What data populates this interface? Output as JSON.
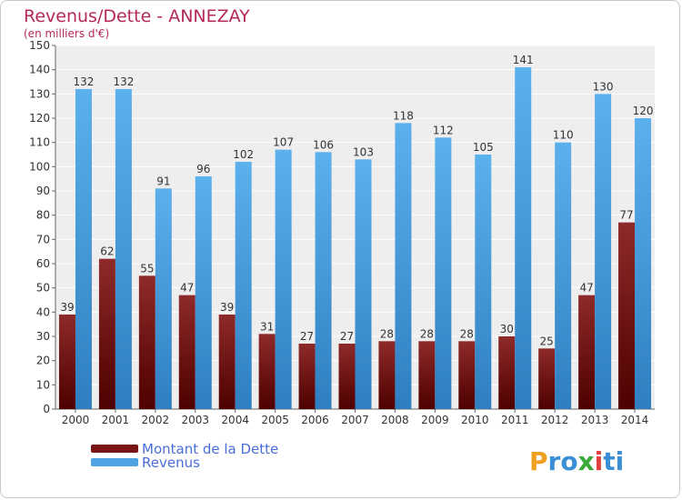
{
  "chart_data": {
    "type": "bar",
    "title": "Revenus/Dette - ANNEZAY",
    "subtitle": "(en milliers d'€)",
    "categories": [
      "2000",
      "2001",
      "2002",
      "2003",
      "2004",
      "2005",
      "2006",
      "2007",
      "2008",
      "2009",
      "2010",
      "2011",
      "2012",
      "2013",
      "2014"
    ],
    "series": [
      {
        "name": "Montant de la Dette",
        "color": "#7a1515",
        "values": [
          39,
          62,
          55,
          47,
          39,
          31,
          27,
          27,
          28,
          28,
          28,
          30,
          25,
          47,
          77
        ]
      },
      {
        "name": "Revenus",
        "color": "#4fa3e3",
        "values": [
          132,
          132,
          91,
          96,
          102,
          107,
          106,
          103,
          118,
          112,
          105,
          141,
          110,
          130,
          120
        ]
      }
    ],
    "ylim": [
      0,
      150
    ],
    "yticks": [
      0,
      10,
      20,
      30,
      40,
      50,
      60,
      70,
      80,
      90,
      100,
      110,
      120,
      130,
      140,
      150
    ],
    "grid": true,
    "legend_position": "bottom-left",
    "legend_text_color": "#4a6ed8"
  },
  "logo": {
    "letters": [
      "P",
      "r",
      "o",
      "x",
      "i",
      "t",
      "i"
    ],
    "colors": [
      "#f0a020",
      "#3b8fd6",
      "#3b8fd6",
      "#3aa83a",
      "#e04040",
      "#3b8fd6",
      "#3b8fd6"
    ]
  }
}
